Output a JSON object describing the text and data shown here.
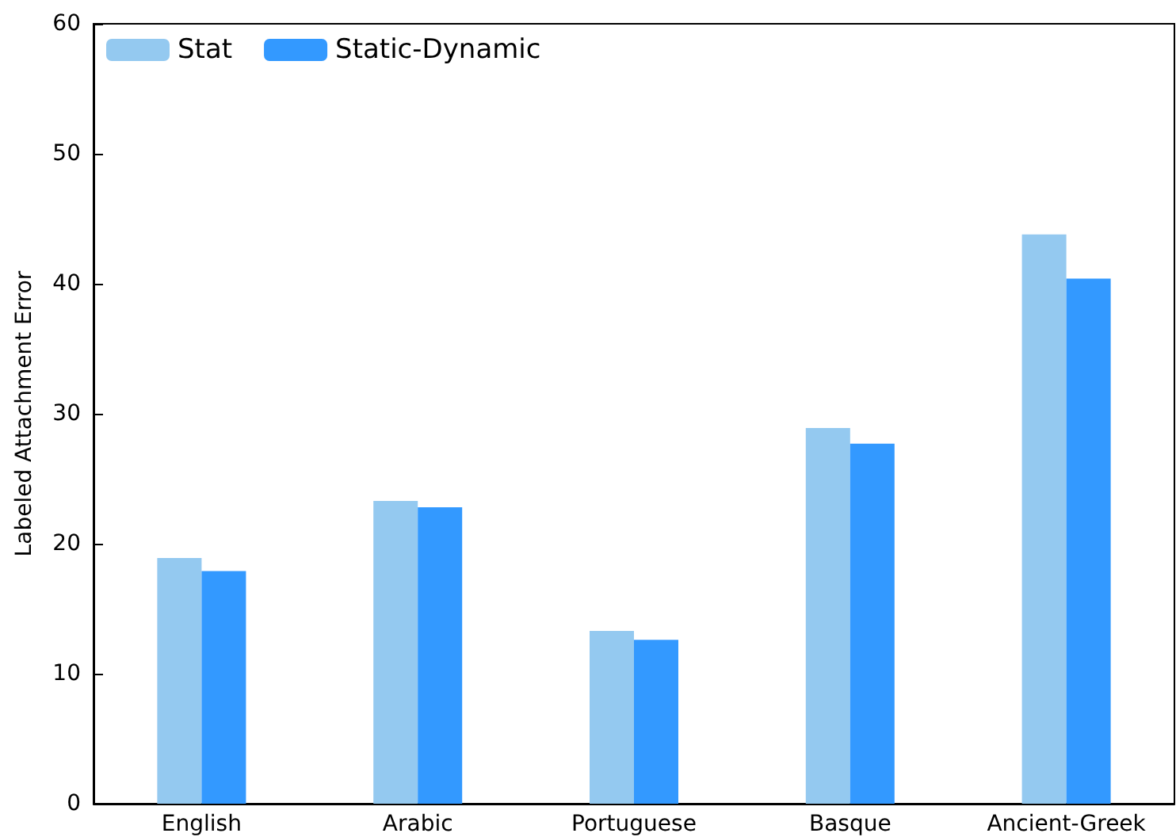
{
  "chart_data": {
    "type": "bar",
    "ylabel": "Labeled Attachment Error",
    "categories": [
      "English",
      "Arabic",
      "Portuguese",
      "Basque",
      "Ancient-Greek"
    ],
    "series": [
      {
        "name": "Stat",
        "color": "#94c9f0",
        "values": [
          18.9,
          23.3,
          13.3,
          28.9,
          43.8
        ]
      },
      {
        "name": "Static-Dynamic",
        "color": "#3399ff",
        "values": [
          17.9,
          22.8,
          12.6,
          27.7,
          40.4
        ]
      }
    ],
    "ylim": [
      0,
      60
    ],
    "yticks": [
      0,
      10,
      20,
      30,
      40,
      50,
      60
    ],
    "grid": false,
    "legend": "top left"
  }
}
